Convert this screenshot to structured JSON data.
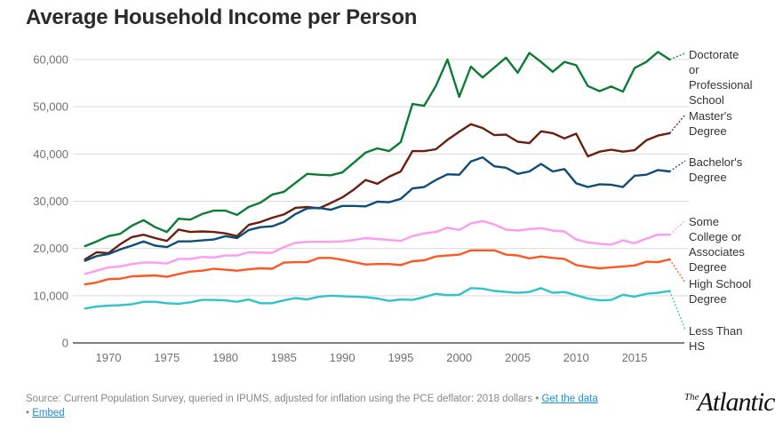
{
  "title": "Average Household Income per Person",
  "footer": {
    "source_text": "Source: Current Population Survey, queried in IPUMS, adjusted for inflation using the PCE deflator: 2018 dollars",
    "separator": "•",
    "get_data_label": "Get the data",
    "embed_label": "Embed",
    "logo_small": "The",
    "logo_large": "Atlantic"
  },
  "chart_data": {
    "type": "line",
    "title": "Average Household Income per Person",
    "xlabel": "",
    "ylabel": "",
    "xlim": [
      1968,
      2018
    ],
    "ylim": [
      0,
      60000
    ],
    "grid": true,
    "legend": "right (inline labels at line ends)",
    "x_ticks": [
      1970,
      1975,
      1980,
      1985,
      1990,
      1995,
      2000,
      2005,
      2010,
      2015
    ],
    "y_ticks": [
      0,
      10000,
      20000,
      30000,
      40000,
      50000,
      60000
    ],
    "y_tick_labels": [
      "0",
      "10,000",
      "20,000",
      "30,000",
      "40,000",
      "50,000",
      "60,000"
    ],
    "x": [
      1968,
      1969,
      1970,
      1971,
      1972,
      1973,
      1974,
      1975,
      1976,
      1977,
      1978,
      1979,
      1980,
      1981,
      1982,
      1983,
      1984,
      1985,
      1986,
      1987,
      1988,
      1989,
      1990,
      1991,
      1992,
      1993,
      1994,
      1995,
      1996,
      1997,
      1998,
      1999,
      2000,
      2001,
      2002,
      2003,
      2004,
      2005,
      2006,
      2007,
      2008,
      2009,
      2010,
      2011,
      2012,
      2013,
      2014,
      2015,
      2016,
      2017,
      2018
    ],
    "series": [
      {
        "name": "Doctorate or Professional School",
        "label_lines": [
          "Doctorate",
          "or",
          "Professional",
          "School"
        ],
        "color": "#0a7d33",
        "values": [
          20500,
          21500,
          22600,
          23100,
          24800,
          26000,
          24500,
          23500,
          26300,
          26100,
          27300,
          28000,
          28000,
          27100,
          28800,
          29700,
          31400,
          32000,
          33900,
          35800,
          35600,
          35500,
          36100,
          38200,
          40300,
          41200,
          40600,
          42500,
          50600,
          50200,
          54400,
          60000,
          52100,
          58500,
          56200,
          58300,
          60400,
          57200,
          61400,
          59500,
          57400,
          59500,
          58800,
          54400,
          53300,
          54300,
          53200,
          58200,
          59500,
          61600,
          60000
        ]
      },
      {
        "name": "Master's Degree",
        "label_lines": [
          "Master's",
          "Degree"
        ],
        "color": "#6b1f0f",
        "values": [
          17700,
          19200,
          19000,
          20900,
          22400,
          22900,
          22200,
          21600,
          24000,
          23500,
          23600,
          23500,
          23200,
          22600,
          25000,
          25600,
          26500,
          27200,
          28600,
          28800,
          28500,
          29600,
          30800,
          32500,
          34500,
          33700,
          35200,
          36300,
          40600,
          40600,
          41000,
          43000,
          44700,
          46300,
          45500,
          44000,
          44100,
          42600,
          42300,
          44800,
          44400,
          43300,
          44300,
          39500,
          40500,
          40900,
          40500,
          40800,
          42900,
          43900,
          44400
        ]
      },
      {
        "name": "Bachelor's Degree",
        "label_lines": [
          "Bachelor's",
          "Degree"
        ],
        "color": "#0e4d7a",
        "values": [
          17400,
          18400,
          18800,
          19800,
          20600,
          21500,
          20600,
          20300,
          21500,
          21500,
          21700,
          21900,
          22600,
          22200,
          23900,
          24500,
          24700,
          25600,
          27300,
          28500,
          28600,
          28200,
          29000,
          29000,
          28900,
          29900,
          29800,
          30500,
          32700,
          33000,
          34500,
          35700,
          35600,
          38400,
          39300,
          37400,
          37100,
          35800,
          36300,
          37900,
          36300,
          36800,
          33800,
          33000,
          33600,
          33500,
          33000,
          35400,
          35600,
          36600,
          36300
        ]
      },
      {
        "name": "Some College or Associates Degree",
        "label_lines": [
          "Some",
          "College or",
          "Associates",
          "Degree"
        ],
        "color": "#ff99f2",
        "values": [
          14600,
          15300,
          16000,
          16200,
          16700,
          17000,
          17000,
          16800,
          17800,
          17800,
          18200,
          18100,
          18500,
          18500,
          19200,
          19100,
          19100,
          20300,
          21200,
          21400,
          21400,
          21400,
          21500,
          21800,
          22200,
          22000,
          21800,
          21600,
          22600,
          23200,
          23500,
          24400,
          23900,
          25300,
          25800,
          25100,
          24000,
          23800,
          24100,
          24300,
          23800,
          23600,
          21900,
          21300,
          21000,
          20800,
          21700,
          21100,
          22100,
          22900,
          22900
        ]
      },
      {
        "name": "High School Degree",
        "label_lines": [
          "High School",
          "Degree"
        ],
        "color": "#ff5722",
        "values": [
          12400,
          12800,
          13500,
          13600,
          14100,
          14200,
          14300,
          14000,
          14600,
          15100,
          15300,
          15700,
          15500,
          15300,
          15600,
          15800,
          15700,
          17000,
          17100,
          17100,
          18000,
          18000,
          17600,
          17100,
          16600,
          16700,
          16700,
          16500,
          17300,
          17500,
          18300,
          18500,
          18700,
          19600,
          19600,
          19600,
          18700,
          18500,
          17900,
          18300,
          18000,
          17800,
          16500,
          16100,
          15800,
          16000,
          16200,
          16400,
          17200,
          17100,
          17700
        ]
      },
      {
        "name": "Less Than HS",
        "label_lines": [
          "Less Than",
          "HS"
        ],
        "color": "#2ec4c9",
        "values": [
          7300,
          7700,
          7900,
          8000,
          8200,
          8700,
          8700,
          8400,
          8300,
          8600,
          9100,
          9100,
          9000,
          8700,
          9200,
          8400,
          8400,
          9000,
          9500,
          9200,
          9800,
          10000,
          9900,
          9800,
          9700,
          9400,
          8900,
          9200,
          9100,
          9700,
          10400,
          10100,
          10200,
          11600,
          11500,
          11000,
          10800,
          10600,
          10800,
          11600,
          10600,
          10800,
          10100,
          9400,
          9000,
          9100,
          10200,
          9800,
          10400,
          10600,
          11000
        ]
      }
    ]
  }
}
